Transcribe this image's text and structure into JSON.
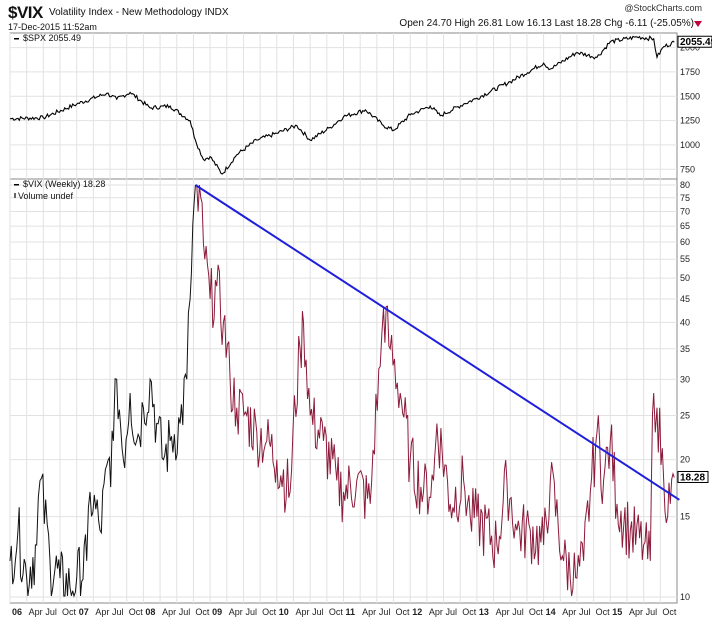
{
  "header": {
    "symbol": "$VIX",
    "description": "Volatility Index - New Methodology INDX",
    "datetime": "17-Dec-2015 11:52am",
    "brand": "@StockCharts.com",
    "stats": {
      "open_label": "Open",
      "open": "24.70",
      "high_label": "High",
      "high": "26.81",
      "low_label": "Low",
      "low": "16.13",
      "last_label": "Last",
      "last": "18.28",
      "chg_label": "Chg",
      "chg": "-6.11 (-25.05%)"
    }
  },
  "chart_data": [
    {
      "type": "line",
      "panel": "top",
      "legend": "$SPX 2055.49",
      "last_value_label": "2055.49",
      "ylim": [
        650,
        2150
      ],
      "yticks": [
        2000,
        1750,
        1500,
        1250,
        1000,
        750
      ],
      "series": [
        {
          "name": "$SPX",
          "x": [
            2006.0,
            2006.5,
            2007.0,
            2007.45,
            2007.6,
            2007.8,
            2008.1,
            2008.4,
            2008.7,
            2008.78,
            2008.9,
            2009.0,
            2009.18,
            2009.4,
            2009.7,
            2010.0,
            2010.3,
            2010.5,
            2010.8,
            2011.0,
            2011.33,
            2011.6,
            2011.75,
            2012.0,
            2012.3,
            2012.45,
            2012.8,
            2013.0,
            2013.5,
            2014.0,
            2014.1,
            2014.5,
            2014.8,
            2015.0,
            2015.4,
            2015.65,
            2015.7,
            2015.8,
            2015.96
          ],
          "y": [
            1270,
            1280,
            1420,
            1530,
            1470,
            1540,
            1380,
            1400,
            1250,
            1050,
            850,
            880,
            700,
            900,
            1050,
            1120,
            1200,
            1050,
            1180,
            1290,
            1360,
            1200,
            1150,
            1310,
            1400,
            1300,
            1420,
            1480,
            1650,
            1840,
            1780,
            1950,
            1900,
            2060,
            2110,
            2090,
            1900,
            2010,
            2055
          ]
        }
      ]
    },
    {
      "type": "line",
      "panel": "bottom",
      "legend": "$VIX (Weekly) 18.28",
      "legend2": "Volume undef",
      "last_value_label": "18.28",
      "scale": "log",
      "ylim": [
        10,
        80
      ],
      "yticks": [
        80,
        75,
        70,
        65,
        60,
        55,
        50,
        45,
        40,
        35,
        30,
        25,
        20,
        15,
        10
      ],
      "xlabels": [
        {
          "label": "06",
          "t": 2006.0,
          "year": true
        },
        {
          "label": "Apr",
          "t": 2006.25
        },
        {
          "label": "Jul",
          "t": 2006.5
        },
        {
          "label": "Oct",
          "t": 2006.75
        },
        {
          "label": "07",
          "t": 2007.0,
          "year": true
        },
        {
          "label": "Apr",
          "t": 2007.25
        },
        {
          "label": "Jul",
          "t": 2007.5
        },
        {
          "label": "Oct",
          "t": 2007.75
        },
        {
          "label": "08",
          "t": 2008.0,
          "year": true
        },
        {
          "label": "Apr",
          "t": 2008.25
        },
        {
          "label": "Jul",
          "t": 2008.5
        },
        {
          "label": "Oct",
          "t": 2008.75
        },
        {
          "label": "09",
          "t": 2009.0,
          "year": true
        },
        {
          "label": "Apr",
          "t": 2009.25
        },
        {
          "label": "Jul",
          "t": 2009.5
        },
        {
          "label": "Oct",
          "t": 2009.75
        },
        {
          "label": "10",
          "t": 2010.0,
          "year": true
        },
        {
          "label": "Apr",
          "t": 2010.25
        },
        {
          "label": "Jul",
          "t": 2010.5
        },
        {
          "label": "Oct",
          "t": 2010.75
        },
        {
          "label": "11",
          "t": 2011.0,
          "year": true
        },
        {
          "label": "Apr",
          "t": 2011.25
        },
        {
          "label": "Jul",
          "t": 2011.5
        },
        {
          "label": "Oct",
          "t": 2011.75
        },
        {
          "label": "12",
          "t": 2012.0,
          "year": true
        },
        {
          "label": "Apr",
          "t": 2012.25
        },
        {
          "label": "Jul",
          "t": 2012.5
        },
        {
          "label": "Oct",
          "t": 2012.75
        },
        {
          "label": "13",
          "t": 2013.0,
          "year": true
        },
        {
          "label": "Apr",
          "t": 2013.25
        },
        {
          "label": "Jul",
          "t": 2013.5
        },
        {
          "label": "Oct",
          "t": 2013.75
        },
        {
          "label": "14",
          "t": 2014.0,
          "year": true
        },
        {
          "label": "Apr",
          "t": 2014.25
        },
        {
          "label": "Jul",
          "t": 2014.5
        },
        {
          "label": "Oct",
          "t": 2014.75
        },
        {
          "label": "15",
          "t": 2015.0,
          "year": true
        },
        {
          "label": "Apr",
          "t": 2015.25
        },
        {
          "label": "Jul",
          "t": 2015.5
        },
        {
          "label": "Oct",
          "t": 2015.75
        }
      ],
      "series": [
        {
          "name": "$VIX",
          "color_before_2008_78": "#111111",
          "color_after": "#8b1a3a",
          "x": [
            2006.0,
            2006.12,
            2006.25,
            2006.4,
            2006.45,
            2006.6,
            2006.75,
            2006.9,
            2007.0,
            2007.15,
            2007.2,
            2007.35,
            2007.55,
            2007.6,
            2007.7,
            2007.8,
            2007.9,
            2008.0,
            2008.1,
            2008.2,
            2008.3,
            2008.4,
            2008.55,
            2008.65,
            2008.7,
            2008.78,
            2008.82,
            2008.86,
            2008.92,
            2009.0,
            2009.1,
            2009.2,
            2009.3,
            2009.4,
            2009.55,
            2009.7,
            2009.85,
            2010.0,
            2010.2,
            2010.35,
            2010.4,
            2010.5,
            2010.7,
            2010.9,
            2011.0,
            2011.2,
            2011.4,
            2011.55,
            2011.6,
            2011.7,
            2011.85,
            2012.0,
            2012.2,
            2012.35,
            2012.4,
            2012.6,
            2012.8,
            2012.9,
            2013.0,
            2013.3,
            2013.45,
            2013.6,
            2013.8,
            2014.0,
            2014.1,
            2014.3,
            2014.5,
            2014.6,
            2014.7,
            2014.8,
            2014.9,
            2015.0,
            2015.1,
            2015.3,
            2015.5,
            2015.6,
            2015.65,
            2015.7,
            2015.8,
            2015.9,
            2015.96
          ],
          "y": [
            12,
            14,
            11,
            13,
            18,
            12,
            11,
            10.5,
            11,
            12,
            17,
            14,
            22,
            30,
            20,
            28,
            22,
            26,
            30,
            24,
            20,
            22,
            24,
            30,
            45,
            80,
            70,
            75,
            55,
            45,
            48,
            40,
            30,
            26,
            25,
            23,
            22,
            20,
            17,
            35,
            40,
            25,
            22,
            18,
            17,
            18,
            16,
            32,
            43,
            35,
            28,
            20,
            17,
            18,
            24,
            16,
            18,
            15,
            15,
            13,
            18,
            14,
            14,
            13,
            18,
            12,
            11,
            12,
            17,
            23,
            18,
            22,
            16,
            14,
            13,
            12,
            28,
            26,
            18,
            16,
            18.28
          ]
        },
        {
          "name": "Trendline",
          "x": [
            2008.78,
            2015.96
          ],
          "y": [
            80,
            16.5
          ]
        }
      ]
    }
  ]
}
